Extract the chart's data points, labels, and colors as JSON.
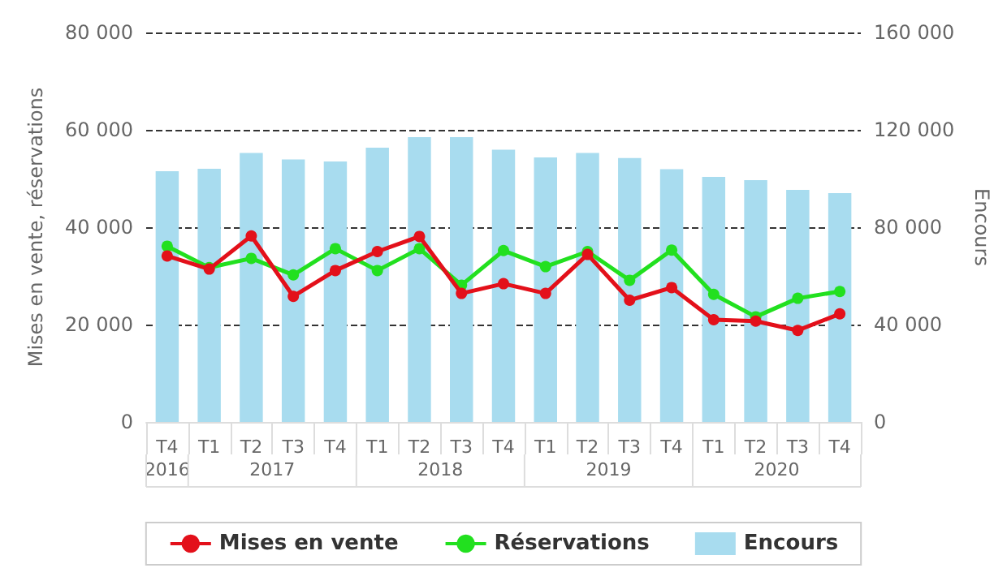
{
  "chart_data": {
    "type": "line",
    "ylabel": "Mises en vente, réservations",
    "y2label": "Encours",
    "categories": [
      "T4",
      "T1",
      "T2",
      "T3",
      "T4",
      "T1",
      "T2",
      "T3",
      "T4",
      "T1",
      "T2",
      "T3",
      "T4",
      "T1",
      "T2",
      "T3",
      "T4"
    ],
    "annotations": [
      "2016",
      "2017",
      "2018",
      "2019",
      "2020"
    ],
    "series": [
      {
        "name": "Mises en vente",
        "color": "#e3101a",
        "values": [
          34100,
          31400,
          38200,
          25800,
          31100,
          35000,
          38100,
          26400,
          28400,
          26400,
          34400,
          25000,
          27600,
          21000,
          20700,
          18800,
          22200
        ]
      },
      {
        "name": "Réservations",
        "color": "#22e01f",
        "values": [
          36100,
          31700,
          33600,
          30200,
          35600,
          31100,
          35600,
          28100,
          35200,
          31900,
          35000,
          29100,
          35300,
          26200,
          21600,
          25400,
          26800
        ]
      },
      {
        "name": "Encours",
        "type": "bar",
        "axis": "y2",
        "color": "#a8dcef",
        "values": [
          103000,
          104000,
          110500,
          107800,
          107000,
          112700,
          117000,
          117000,
          111800,
          108700,
          110500,
          108400,
          103800,
          100700,
          99300,
          95300,
          94000
        ]
      }
    ],
    "ylim": [
      0,
      80000
    ],
    "yticks": [
      0,
      {
        "value": 20000,
        "label": "20 000"
      },
      {
        "value": 40000,
        "label": "40 000"
      },
      {
        "value": 60000,
        "label": "60 000"
      },
      {
        "value": 80000,
        "label": "80 000"
      }
    ],
    "y2lim": [
      0,
      160000
    ],
    "y2ticks": [
      0,
      {
        "value": 40000,
        "label": "40 000"
      },
      {
        "value": 80000,
        "label": "80 000"
      },
      {
        "value": 120000,
        "label": "120 000"
      },
      {
        "value": 160000,
        "label": "160 000"
      }
    ],
    "grid": "y",
    "legend": "bottom",
    "marker": "circle"
  }
}
